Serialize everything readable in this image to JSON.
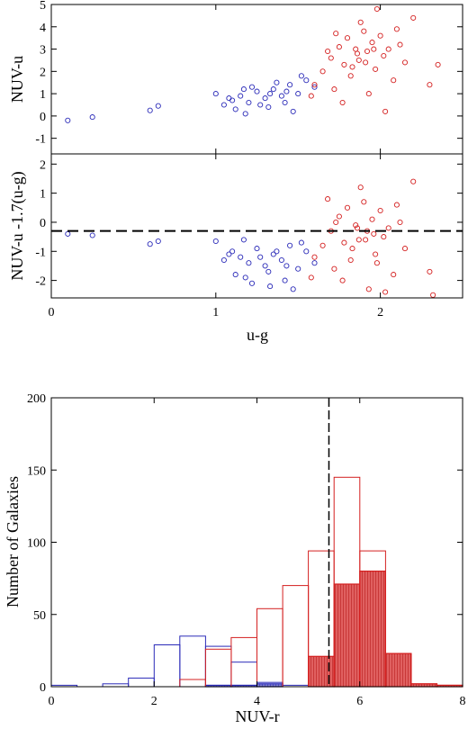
{
  "colors": {
    "red": "#d42020",
    "blue": "#2a2ab8",
    "axis": "#000000"
  },
  "chart_data": [
    {
      "type": "scatter",
      "panel": "top",
      "xlabel": "",
      "ylabel": "NUV-u",
      "xlim": [
        0,
        2.5
      ],
      "ylim": [
        -1.7,
        5
      ],
      "yticks": [
        "-1",
        "0",
        "1",
        "2",
        "3",
        "4",
        "5"
      ],
      "xticks": [],
      "marker": "open-circle",
      "series": [
        {
          "color": "blue",
          "points": [
            [
              0.1,
              -0.2
            ],
            [
              0.25,
              -0.05
            ],
            [
              0.6,
              0.25
            ],
            [
              0.65,
              0.45
            ],
            [
              1.0,
              1.0
            ],
            [
              1.05,
              0.5
            ],
            [
              1.1,
              0.7
            ],
            [
              1.15,
              0.9
            ],
            [
              1.2,
              0.6
            ],
            [
              1.25,
              1.1
            ],
            [
              1.3,
              0.8
            ],
            [
              1.35,
              1.2
            ],
            [
              1.4,
              0.9
            ],
            [
              1.45,
              1.4
            ],
            [
              1.5,
              1.0
            ],
            [
              1.55,
              1.6
            ],
            [
              1.12,
              0.3
            ],
            [
              1.22,
              1.3
            ],
            [
              1.32,
              0.4
            ],
            [
              1.42,
              0.6
            ],
            [
              1.52,
              1.8
            ],
            [
              1.47,
              0.2
            ],
            [
              1.37,
              1.5
            ],
            [
              1.27,
              0.5
            ],
            [
              1.17,
              1.2
            ],
            [
              1.6,
              1.3
            ],
            [
              1.08,
              0.8
            ],
            [
              1.18,
              0.1
            ],
            [
              1.33,
              1.0
            ],
            [
              1.43,
              1.1
            ]
          ]
        },
        {
          "color": "red",
          "points": [
            [
              1.6,
              1.4
            ],
            [
              1.65,
              2.0
            ],
            [
              1.7,
              2.6
            ],
            [
              1.72,
              1.2
            ],
            [
              1.75,
              3.1
            ],
            [
              1.78,
              2.3
            ],
            [
              1.8,
              3.5
            ],
            [
              1.82,
              1.8
            ],
            [
              1.85,
              3.0
            ],
            [
              1.87,
              2.5
            ],
            [
              1.9,
              3.8
            ],
            [
              1.92,
              2.9
            ],
            [
              1.95,
              3.3
            ],
            [
              1.97,
              2.1
            ],
            [
              2.0,
              3.6
            ],
            [
              2.02,
              2.7
            ],
            [
              2.05,
              3.0
            ],
            [
              2.08,
              1.6
            ],
            [
              2.1,
              3.9
            ],
            [
              2.15,
              2.4
            ],
            [
              1.88,
              4.2
            ],
            [
              1.93,
              1.0
            ],
            [
              1.77,
              0.6
            ],
            [
              1.98,
              4.8
            ],
            [
              2.12,
              3.2
            ],
            [
              1.68,
              2.9
            ],
            [
              1.83,
              2.2
            ],
            [
              2.2,
              4.4
            ],
            [
              2.3,
              1.4
            ],
            [
              2.35,
              2.3
            ],
            [
              1.58,
              0.9
            ],
            [
              1.73,
              3.7
            ],
            [
              2.03,
              0.2
            ],
            [
              1.96,
              3.0
            ],
            [
              1.86,
              2.8
            ],
            [
              1.91,
              2.4
            ]
          ]
        }
      ]
    },
    {
      "type": "scatter",
      "panel": "middle",
      "xlabel": "u-g",
      "ylabel": "NUV-u -1.7(u-g)",
      "xlim": [
        0,
        2.5
      ],
      "ylim": [
        -2.6,
        2.35
      ],
      "xticks": [
        "0",
        "1",
        "2"
      ],
      "yticks": [
        "-2",
        "-1",
        "0",
        "1",
        "2"
      ],
      "reference_line_y": -0.3,
      "marker": "open-circle",
      "series": [
        {
          "color": "blue",
          "points": [
            [
              0.1,
              -0.4
            ],
            [
              0.25,
              -0.45
            ],
            [
              0.6,
              -0.75
            ],
            [
              0.65,
              -0.65
            ],
            [
              1.0,
              -0.65
            ],
            [
              1.05,
              -1.3
            ],
            [
              1.1,
              -1.0
            ],
            [
              1.15,
              -1.2
            ],
            [
              1.2,
              -1.4
            ],
            [
              1.25,
              -0.9
            ],
            [
              1.3,
              -1.5
            ],
            [
              1.35,
              -1.1
            ],
            [
              1.4,
              -1.3
            ],
            [
              1.45,
              -0.8
            ],
            [
              1.5,
              -1.6
            ],
            [
              1.55,
              -1.0
            ],
            [
              1.12,
              -1.8
            ],
            [
              1.22,
              -2.1
            ],
            [
              1.32,
              -1.7
            ],
            [
              1.42,
              -2.0
            ],
            [
              1.52,
              -0.7
            ],
            [
              1.47,
              -2.3
            ],
            [
              1.37,
              -1.0
            ],
            [
              1.27,
              -1.2
            ],
            [
              1.17,
              -0.6
            ],
            [
              1.6,
              -1.4
            ],
            [
              1.08,
              -1.1
            ],
            [
              1.18,
              -1.9
            ],
            [
              1.33,
              -2.2
            ],
            [
              1.43,
              -1.5
            ]
          ]
        },
        {
          "color": "red",
          "points": [
            [
              1.6,
              -1.2
            ],
            [
              1.65,
              -0.8
            ],
            [
              1.7,
              -0.3
            ],
            [
              1.72,
              -1.6
            ],
            [
              1.75,
              0.2
            ],
            [
              1.78,
              -0.7
            ],
            [
              1.8,
              0.5
            ],
            [
              1.82,
              -1.3
            ],
            [
              1.85,
              -0.1
            ],
            [
              1.87,
              -0.6
            ],
            [
              1.9,
              0.7
            ],
            [
              1.92,
              -0.3
            ],
            [
              1.95,
              0.1
            ],
            [
              1.97,
              -1.1
            ],
            [
              2.0,
              0.4
            ],
            [
              2.02,
              -0.5
            ],
            [
              2.05,
              -0.2
            ],
            [
              2.08,
              -1.8
            ],
            [
              2.1,
              0.6
            ],
            [
              2.15,
              -0.9
            ],
            [
              1.88,
              1.2
            ],
            [
              1.93,
              -2.3
            ],
            [
              1.77,
              -2.0
            ],
            [
              1.98,
              -1.4
            ],
            [
              2.12,
              0.0
            ],
            [
              1.68,
              0.8
            ],
            [
              1.83,
              -0.9
            ],
            [
              2.2,
              1.4
            ],
            [
              2.3,
              -1.7
            ],
            [
              2.32,
              -2.5
            ],
            [
              1.58,
              -1.9
            ],
            [
              1.73,
              0.0
            ],
            [
              2.03,
              -2.4
            ],
            [
              1.96,
              -0.4
            ],
            [
              1.86,
              -0.2
            ],
            [
              1.91,
              -0.6
            ]
          ]
        }
      ]
    },
    {
      "type": "histogram",
      "panel": "bottom",
      "xlabel": "NUV-r",
      "ylabel": "Number of Galaxies",
      "xlim": [
        0,
        8
      ],
      "ylim": [
        0,
        200
      ],
      "xticks": [
        "0",
        "2",
        "4",
        "6",
        "8"
      ],
      "yticks": [
        "0",
        "50",
        "100",
        "150",
        "200"
      ],
      "bin_width": 0.5,
      "reference_line_x": 5.4,
      "series": [
        {
          "color": "blue",
          "style": "outline",
          "bins": [
            [
              0,
              1
            ],
            [
              0.5,
              0
            ],
            [
              1,
              2
            ],
            [
              1.5,
              6
            ],
            [
              2,
              29
            ],
            [
              2.5,
              35
            ],
            [
              3,
              28
            ],
            [
              3.5,
              17
            ],
            [
              4,
              3
            ],
            [
              4.5,
              1
            ]
          ]
        },
        {
          "color": "red",
          "style": "outline",
          "bins": [
            [
              2.5,
              5
            ],
            [
              3,
              26
            ],
            [
              3.5,
              34
            ],
            [
              4,
              54
            ],
            [
              4.5,
              70
            ],
            [
              5,
              94
            ],
            [
              5.5,
              145
            ],
            [
              6,
              94
            ],
            [
              6.5,
              23
            ],
            [
              7,
              2
            ],
            [
              7.5,
              1
            ]
          ]
        },
        {
          "color": "red",
          "style": "filled",
          "bins": [
            [
              5,
              21
            ],
            [
              5.5,
              71
            ],
            [
              6,
              80
            ],
            [
              6.5,
              23
            ],
            [
              7,
              2
            ],
            [
              7.5,
              1
            ]
          ]
        },
        {
          "color": "blue",
          "style": "filled",
          "bins": [
            [
              3,
              1
            ],
            [
              3.5,
              1
            ],
            [
              4,
              2
            ]
          ]
        }
      ]
    }
  ]
}
